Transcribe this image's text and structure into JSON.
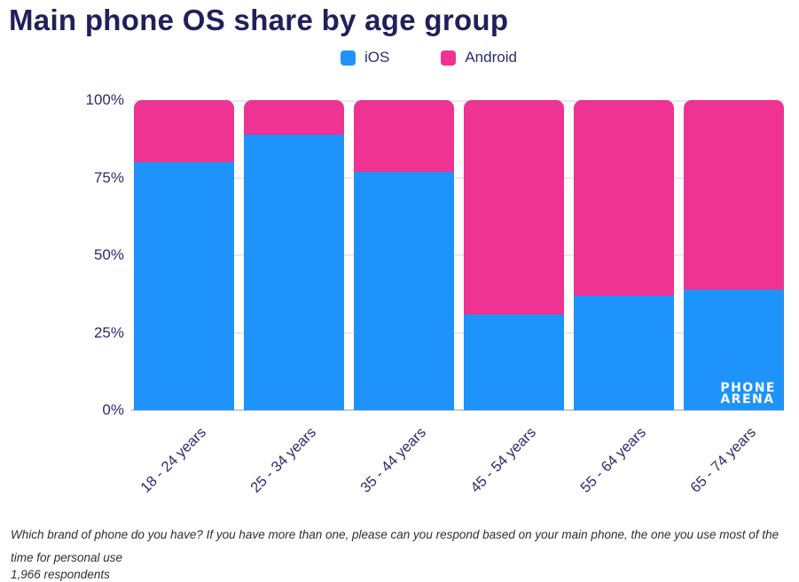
{
  "title": "Main phone OS share by age group",
  "legend": [
    {
      "label": "iOS",
      "color": "#1e93fa"
    },
    {
      "label": "Android",
      "color": "#ee3392"
    }
  ],
  "chart_data": {
    "type": "bar",
    "stacked": true,
    "title": "Main phone OS share by age group",
    "categories": [
      "18 - 24 years",
      "25 - 34 years",
      "35 - 44 years",
      "45 - 54 years",
      "55 - 64 years",
      "65 - 74 years"
    ],
    "series": [
      {
        "name": "iOS",
        "color": "#1e93fa",
        "values": [
          80,
          89,
          77,
          31,
          37,
          39
        ]
      },
      {
        "name": "Android",
        "color": "#ee3392",
        "values": [
          20,
          11,
          23,
          69,
          63,
          61
        ]
      }
    ],
    "xlabel": "",
    "ylabel": "",
    "ylim": [
      0,
      100
    ],
    "yticks": [
      0,
      25,
      50,
      75,
      100
    ],
    "ytick_suffix": "%",
    "grid": true,
    "legend_position": "top",
    "xtick_rotation": -45
  },
  "watermark": {
    "line1": "PHONE",
    "line2": "ARENA"
  },
  "footnote": {
    "question": "Which brand of phone do you have? If you have more than one, please can you respond based on your main phone, the one you use most of the time for personal use",
    "respondents": "1,966 respondents"
  }
}
